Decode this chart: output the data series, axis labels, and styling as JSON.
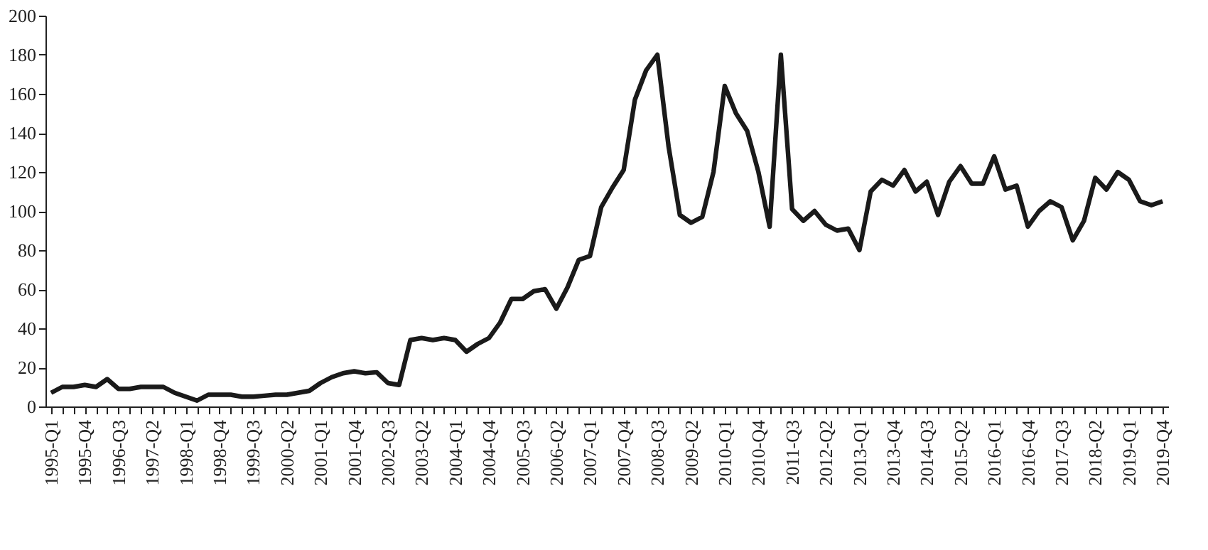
{
  "chart_data": {
    "type": "line",
    "categories": [
      "1995-Q1",
      null,
      null,
      "1995-Q4",
      null,
      null,
      "1996-Q3",
      null,
      null,
      "1997-Q2",
      null,
      null,
      "1998-Q1",
      null,
      null,
      "1998-Q4",
      null,
      null,
      "1999-Q3",
      null,
      null,
      "2000-Q2",
      null,
      null,
      "2001-Q1",
      null,
      null,
      "2001-Q4",
      null,
      null,
      "2002-Q3",
      null,
      null,
      "2003-Q2",
      null,
      null,
      "2004-Q1",
      null,
      null,
      "2004-Q4",
      null,
      null,
      "2005-Q3",
      null,
      null,
      "2006-Q2",
      null,
      null,
      "2007-Q1",
      null,
      null,
      "2007-Q4",
      null,
      null,
      "2008-Q3",
      null,
      null,
      "2009-Q2",
      null,
      null,
      "2010-Q1",
      null,
      null,
      "2010-Q4",
      null,
      null,
      "2011-Q3",
      null,
      null,
      "2012-Q2",
      null,
      null,
      "2013-Q1",
      null,
      null,
      "2013-Q4",
      null,
      null,
      "2014-Q3",
      null,
      null,
      "2015-Q2",
      null,
      null,
      "2016-Q1",
      null,
      null,
      "2016-Q4",
      null,
      null,
      "2017-Q3",
      null,
      null,
      "2018-Q2",
      null,
      null,
      "2019-Q1",
      null,
      null,
      "2019-Q4"
    ],
    "series": [
      {
        "color": "#1a1a1a",
        "values": [
          7,
          10,
          10,
          11,
          10,
          14,
          9,
          9,
          10,
          10,
          10,
          7,
          5,
          3,
          6,
          6,
          6,
          5,
          5,
          5.5,
          6,
          6,
          7,
          8,
          12,
          15,
          17,
          18,
          17,
          17.5,
          12,
          11,
          34,
          35,
          34,
          35,
          34,
          28,
          32,
          35,
          43,
          55,
          55,
          59,
          60,
          50,
          61,
          75,
          77,
          102,
          112,
          121,
          157,
          172,
          180,
          133,
          98,
          94,
          97,
          120,
          164,
          150,
          141,
          120,
          92,
          180,
          101,
          95,
          100,
          93,
          90,
          91,
          80,
          110,
          116,
          113,
          121,
          110,
          115,
          98,
          115,
          123,
          114,
          114,
          128,
          111,
          113,
          92,
          100,
          105,
          102,
          85,
          95,
          117,
          111,
          120,
          116,
          105,
          103,
          105
        ]
      }
    ],
    "ylim": [
      0,
      200
    ],
    "yticks": [
      0,
      20,
      40,
      60,
      80,
      100,
      120,
      140,
      160,
      180,
      200
    ],
    "grid": false,
    "marker": "none",
    "line_style": "solid"
  }
}
